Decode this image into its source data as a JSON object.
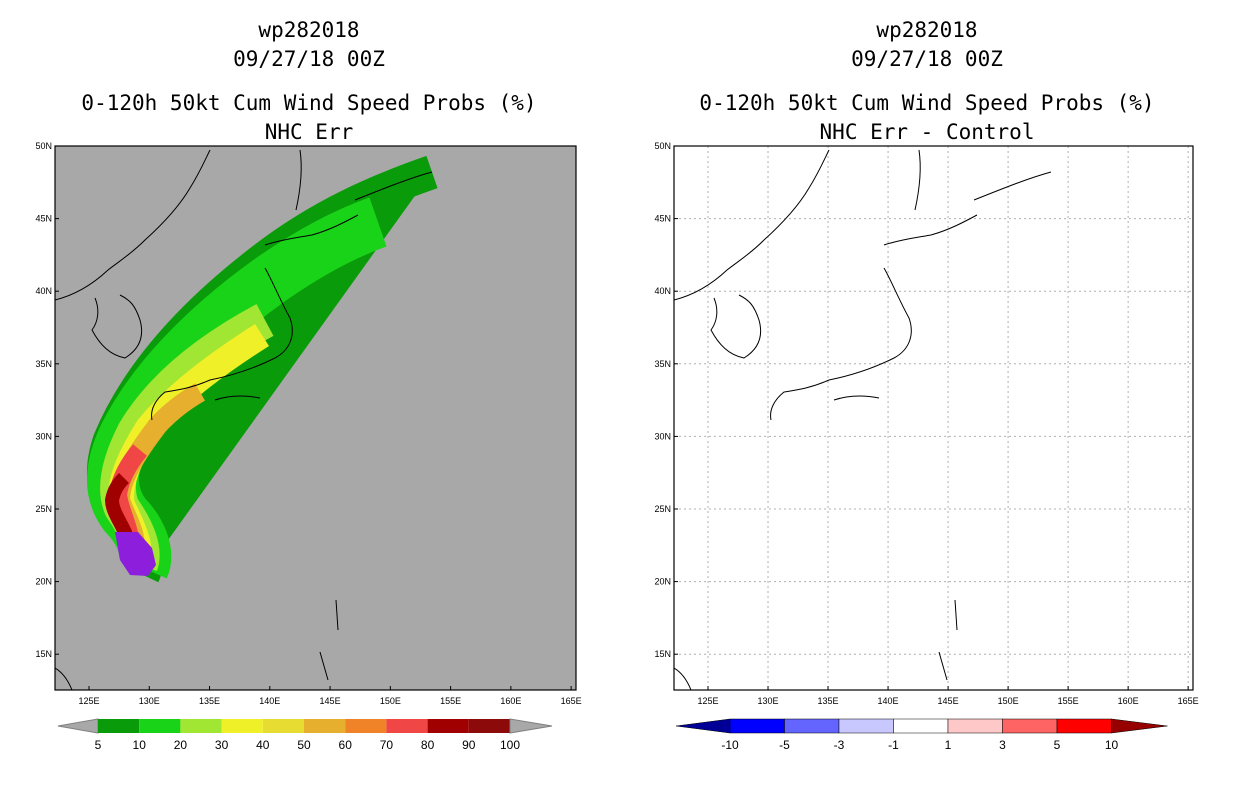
{
  "left": {
    "storm_id": "wp282018",
    "datetime": "09/27/18 00Z",
    "product": "0-120h 50kt Cum Wind Speed Probs (%)",
    "subtitle": "NHC Err",
    "colorbar": {
      "labels": [
        "5",
        "10",
        "20",
        "30",
        "40",
        "50",
        "60",
        "70",
        "80",
        "90",
        "100"
      ],
      "colors": [
        "#0a9b0a",
        "#19d319",
        "#a0e632",
        "#f0f028",
        "#e6dc32",
        "#e6af2d",
        "#f08228",
        "#f04646",
        "#a00000",
        "#8c0a0a",
        "#8c1edc"
      ]
    }
  },
  "right": {
    "storm_id": "wp282018",
    "datetime": "09/27/18 00Z",
    "product": "0-120h 50kt Cum Wind Speed Probs (%)",
    "subtitle": "NHC Err - Control",
    "colorbar": {
      "labels": [
        "-10",
        "-5",
        "-3",
        "-1",
        "1",
        "3",
        "5",
        "10"
      ],
      "colors": [
        "#000096",
        "#0000ff",
        "#6464ff",
        "#c8c8ff",
        "#ffffff",
        "#ffc8c8",
        "#ff6464",
        "#ff0000",
        "#960000"
      ]
    }
  },
  "map": {
    "lat_labels": [
      "50N",
      "45N",
      "40N",
      "35N",
      "30N",
      "25N",
      "20N",
      "15N"
    ],
    "lon_labels": [
      "125E",
      "130E",
      "135E",
      "140E",
      "145E",
      "150E",
      "155E",
      "160E",
      "165E"
    ],
    "ocean_color": "#a8a8a8"
  }
}
